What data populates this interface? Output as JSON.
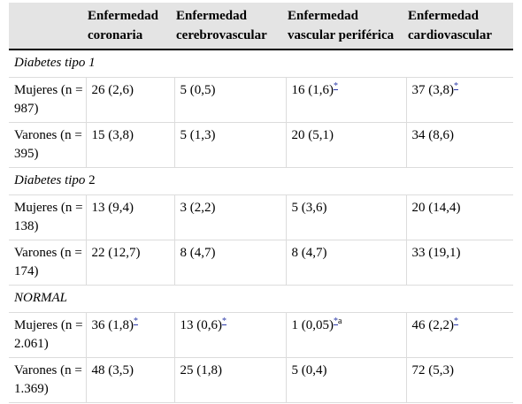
{
  "headers": [
    "",
    "Enfermedad coronaria",
    "Enfermedad cerebrovascular",
    "Enfermedad vascular periférica",
    "Enfermedad cardiovascular"
  ],
  "groups": [
    {
      "title_italic": "Diabetes tipo 1",
      "title_plain": "",
      "rows": [
        {
          "label": "Mujeres (n = 987)",
          "cells": [
            {
              "text": "26 (2,6)",
              "mark": "",
              "extra": ""
            },
            {
              "text": "5 (0,5)",
              "mark": "",
              "extra": ""
            },
            {
              "text": "16 (1,6)",
              "mark": "*",
              "extra": ""
            },
            {
              "text": "37 (3,8)",
              "mark": "*",
              "extra": ""
            }
          ]
        },
        {
          "label": "Varones (n = 395)",
          "cells": [
            {
              "text": "15 (3,8)",
              "mark": "",
              "extra": ""
            },
            {
              "text": "5 (1,3)",
              "mark": "",
              "extra": ""
            },
            {
              "text": "20 (5,1)",
              "mark": "",
              "extra": ""
            },
            {
              "text": "34 (8,6)",
              "mark": "",
              "extra": ""
            }
          ]
        }
      ]
    },
    {
      "title_italic": "Diabetes tipo",
      "title_plain": " 2",
      "rows": [
        {
          "label": "Mujeres (n = 138)",
          "cells": [
            {
              "text": "13 (9,4)",
              "mark": "",
              "extra": ""
            },
            {
              "text": "3 (2,2)",
              "mark": "",
              "extra": ""
            },
            {
              "text": "5 (3,6)",
              "mark": "",
              "extra": ""
            },
            {
              "text": "20 (14,4)",
              "mark": "",
              "extra": ""
            }
          ]
        },
        {
          "label": "Varones (n = 174)",
          "cells": [
            {
              "text": "22 (12,7)",
              "mark": "",
              "extra": ""
            },
            {
              "text": "8 (4,7)",
              "mark": "",
              "extra": ""
            },
            {
              "text": "8 (4,7)",
              "mark": "",
              "extra": ""
            },
            {
              "text": "33 (19,1)",
              "mark": "",
              "extra": ""
            }
          ]
        }
      ]
    },
    {
      "title_italic": "NORMAL",
      "title_plain": "",
      "rows": [
        {
          "label": "Mujeres (n = 2.061)",
          "cells": [
            {
              "text": "36 (1,8)",
              "mark": "*",
              "extra": ""
            },
            {
              "text": "13 (0,6)",
              "mark": "*",
              "extra": ""
            },
            {
              "text": "1 (0,05)",
              "mark": "*",
              "extra": "a"
            },
            {
              "text": "46 (2,2)",
              "mark": "*",
              "extra": ""
            }
          ]
        },
        {
          "label": "Varones (n = 1.369)",
          "cells": [
            {
              "text": "48 (3,5)",
              "mark": "",
              "extra": ""
            },
            {
              "text": "25 (1,8)",
              "mark": "",
              "extra": ""
            },
            {
              "text": "5 (0,4)",
              "mark": "",
              "extra": ""
            },
            {
              "text": "72 (5,3)",
              "mark": "",
              "extra": ""
            }
          ]
        }
      ]
    }
  ]
}
